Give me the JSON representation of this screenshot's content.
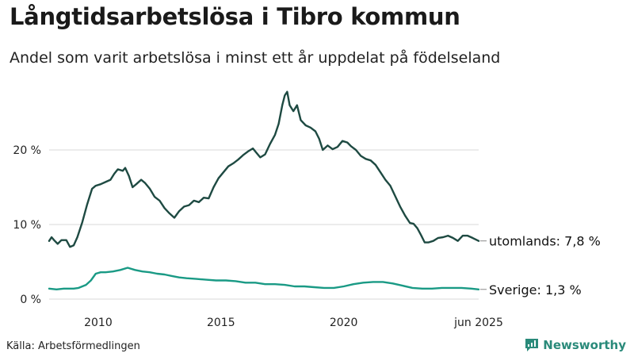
{
  "title": "Långtidsarbetslösa i Tibro kommun",
  "subtitle": "Andel som varit arbetslösa i minst ett år uppdelat på födelseland",
  "source": "Källa: Arbetsförmedlingen",
  "brand": "Newsworthy",
  "colors": {
    "utomlands": "#1e4a42",
    "sverige": "#1a9a85",
    "grid": "#d8d8d8",
    "brand": "#2a8a7a"
  },
  "chart_data": {
    "type": "line",
    "x_unit": "year",
    "ylim": [
      0,
      30
    ],
    "xlim": [
      2008.0,
      2025.5
    ],
    "y_ticks": [
      {
        "value": 0,
        "label": "0 %"
      },
      {
        "value": 10,
        "label": "10 %"
      },
      {
        "value": 20,
        "label": "20 %"
      }
    ],
    "x_ticks": [
      {
        "value": 2010,
        "label": "2010"
      },
      {
        "value": 2015,
        "label": "2015"
      },
      {
        "value": 2020,
        "label": "2020"
      },
      {
        "value": 2025.5,
        "label": "jun 2025"
      }
    ],
    "grid": true,
    "series": [
      {
        "name": "utomlands",
        "end_label": "utomlands: 7,8 %",
        "color_key": "utomlands",
        "points": [
          [
            2008.0,
            7.8
          ],
          [
            2008.1,
            8.3
          ],
          [
            2008.2,
            7.9
          ],
          [
            2008.35,
            7.4
          ],
          [
            2008.5,
            7.9
          ],
          [
            2008.7,
            7.9
          ],
          [
            2008.85,
            7.0
          ],
          [
            2009.0,
            7.2
          ],
          [
            2009.15,
            8.3
          ],
          [
            2009.35,
            10.3
          ],
          [
            2009.55,
            12.7
          ],
          [
            2009.75,
            14.8
          ],
          [
            2009.9,
            15.2
          ],
          [
            2010.1,
            15.4
          ],
          [
            2010.3,
            15.7
          ],
          [
            2010.5,
            16.0
          ],
          [
            2010.65,
            16.8
          ],
          [
            2010.8,
            17.4
          ],
          [
            2011.0,
            17.2
          ],
          [
            2011.1,
            17.6
          ],
          [
            2011.25,
            16.5
          ],
          [
            2011.4,
            15.0
          ],
          [
            2011.55,
            15.4
          ],
          [
            2011.75,
            16.0
          ],
          [
            2011.9,
            15.6
          ],
          [
            2012.1,
            14.8
          ],
          [
            2012.3,
            13.7
          ],
          [
            2012.5,
            13.2
          ],
          [
            2012.7,
            12.2
          ],
          [
            2012.9,
            11.5
          ],
          [
            2013.1,
            10.9
          ],
          [
            2013.3,
            11.8
          ],
          [
            2013.5,
            12.4
          ],
          [
            2013.7,
            12.6
          ],
          [
            2013.9,
            13.2
          ],
          [
            2014.1,
            13.0
          ],
          [
            2014.3,
            13.6
          ],
          [
            2014.5,
            13.5
          ],
          [
            2014.7,
            15.0
          ],
          [
            2014.9,
            16.2
          ],
          [
            2015.1,
            17.0
          ],
          [
            2015.3,
            17.8
          ],
          [
            2015.5,
            18.2
          ],
          [
            2015.7,
            18.7
          ],
          [
            2015.9,
            19.3
          ],
          [
            2016.1,
            19.8
          ],
          [
            2016.3,
            20.2
          ],
          [
            2016.45,
            19.6
          ],
          [
            2016.6,
            19.0
          ],
          [
            2016.8,
            19.4
          ],
          [
            2017.0,
            20.8
          ],
          [
            2017.2,
            22.0
          ],
          [
            2017.35,
            23.5
          ],
          [
            2017.5,
            26.0
          ],
          [
            2017.6,
            27.3
          ],
          [
            2017.7,
            27.8
          ],
          [
            2017.8,
            26.0
          ],
          [
            2017.95,
            25.2
          ],
          [
            2018.1,
            26.0
          ],
          [
            2018.25,
            24.0
          ],
          [
            2018.45,
            23.3
          ],
          [
            2018.65,
            23.0
          ],
          [
            2018.85,
            22.5
          ],
          [
            2019.0,
            21.5
          ],
          [
            2019.15,
            20.0
          ],
          [
            2019.35,
            20.6
          ],
          [
            2019.55,
            20.1
          ],
          [
            2019.75,
            20.4
          ],
          [
            2019.95,
            21.2
          ],
          [
            2020.15,
            21.0
          ],
          [
            2020.3,
            20.5
          ],
          [
            2020.5,
            20.0
          ],
          [
            2020.7,
            19.2
          ],
          [
            2020.9,
            18.8
          ],
          [
            2021.1,
            18.6
          ],
          [
            2021.3,
            18.0
          ],
          [
            2021.5,
            17.0
          ],
          [
            2021.7,
            16.0
          ],
          [
            2021.9,
            15.2
          ],
          [
            2022.1,
            13.8
          ],
          [
            2022.3,
            12.4
          ],
          [
            2022.5,
            11.2
          ],
          [
            2022.7,
            10.2
          ],
          [
            2022.85,
            10.1
          ],
          [
            2023.0,
            9.5
          ],
          [
            2023.15,
            8.6
          ],
          [
            2023.3,
            7.6
          ],
          [
            2023.45,
            7.6
          ],
          [
            2023.65,
            7.8
          ],
          [
            2023.85,
            8.2
          ],
          [
            2024.05,
            8.3
          ],
          [
            2024.25,
            8.5
          ],
          [
            2024.45,
            8.2
          ],
          [
            2024.65,
            7.8
          ],
          [
            2024.85,
            8.5
          ],
          [
            2025.05,
            8.5
          ],
          [
            2025.25,
            8.2
          ],
          [
            2025.5,
            7.8
          ]
        ]
      },
      {
        "name": "Sverige",
        "end_label": "Sverige: 1,3 %",
        "color_key": "sverige",
        "points": [
          [
            2008.0,
            1.4
          ],
          [
            2008.3,
            1.3
          ],
          [
            2008.6,
            1.4
          ],
          [
            2009.0,
            1.4
          ],
          [
            2009.2,
            1.5
          ],
          [
            2009.5,
            1.9
          ],
          [
            2009.7,
            2.5
          ],
          [
            2009.9,
            3.4
          ],
          [
            2010.1,
            3.6
          ],
          [
            2010.3,
            3.6
          ],
          [
            2010.6,
            3.7
          ],
          [
            2010.9,
            3.9
          ],
          [
            2011.2,
            4.2
          ],
          [
            2011.5,
            3.9
          ],
          [
            2011.8,
            3.7
          ],
          [
            2012.1,
            3.6
          ],
          [
            2012.4,
            3.4
          ],
          [
            2012.7,
            3.3
          ],
          [
            2013.0,
            3.1
          ],
          [
            2013.3,
            2.9
          ],
          [
            2013.6,
            2.8
          ],
          [
            2014.0,
            2.7
          ],
          [
            2014.4,
            2.6
          ],
          [
            2014.8,
            2.5
          ],
          [
            2015.2,
            2.5
          ],
          [
            2015.6,
            2.4
          ],
          [
            2016.0,
            2.2
          ],
          [
            2016.4,
            2.2
          ],
          [
            2016.8,
            2.0
          ],
          [
            2017.2,
            2.0
          ],
          [
            2017.6,
            1.9
          ],
          [
            2018.0,
            1.7
          ],
          [
            2018.4,
            1.7
          ],
          [
            2018.8,
            1.6
          ],
          [
            2019.2,
            1.5
          ],
          [
            2019.6,
            1.5
          ],
          [
            2020.0,
            1.7
          ],
          [
            2020.4,
            2.0
          ],
          [
            2020.8,
            2.2
          ],
          [
            2021.2,
            2.3
          ],
          [
            2021.6,
            2.3
          ],
          [
            2022.0,
            2.1
          ],
          [
            2022.4,
            1.8
          ],
          [
            2022.8,
            1.5
          ],
          [
            2023.2,
            1.4
          ],
          [
            2023.6,
            1.4
          ],
          [
            2024.0,
            1.5
          ],
          [
            2024.4,
            1.5
          ],
          [
            2024.8,
            1.5
          ],
          [
            2025.2,
            1.4
          ],
          [
            2025.5,
            1.3
          ]
        ]
      }
    ]
  }
}
